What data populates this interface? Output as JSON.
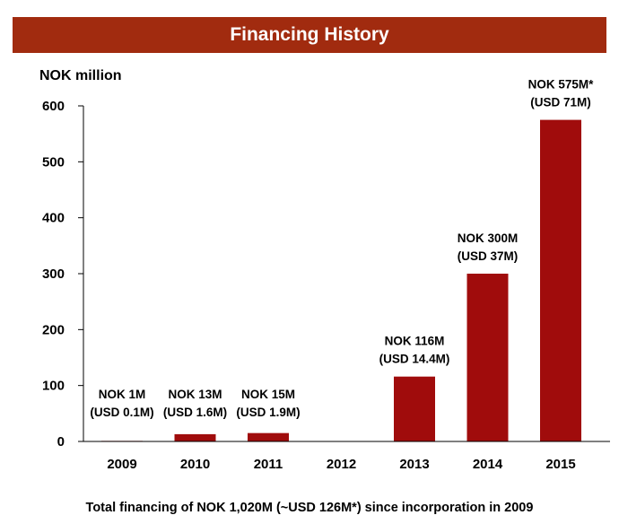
{
  "banner": {
    "title": "Financing History"
  },
  "footer": {
    "text": "Total financing of NOK 1,020M (~USD 126M*) since incorporation in 2009"
  },
  "chart_data": {
    "type": "bar",
    "title": "Financing History",
    "ylabel": "NOK million",
    "xlabel": "",
    "ylim": [
      0,
      600
    ],
    "yticks": [
      0,
      100,
      200,
      300,
      400,
      500,
      600
    ],
    "categories": [
      "2009",
      "2010",
      "2011",
      "2012",
      "2013",
      "2014",
      "2015"
    ],
    "values": [
      1,
      13,
      15,
      0,
      116,
      300,
      575
    ],
    "data_labels": [
      [
        "NOK 1M",
        "(USD 0.1M)"
      ],
      [
        "NOK 13M",
        "(USD 1.6M)"
      ],
      [
        "NOK 15M",
        "(USD 1.9M)"
      ],
      [],
      [
        "NOK 116M",
        "(USD 14.4M)"
      ],
      [
        "NOK 300M",
        "(USD  37M)"
      ],
      [
        "NOK 575M*",
        "(USD 71M)"
      ]
    ],
    "grid": false,
    "legend": "none",
    "bar_color": "#a00c0c"
  }
}
